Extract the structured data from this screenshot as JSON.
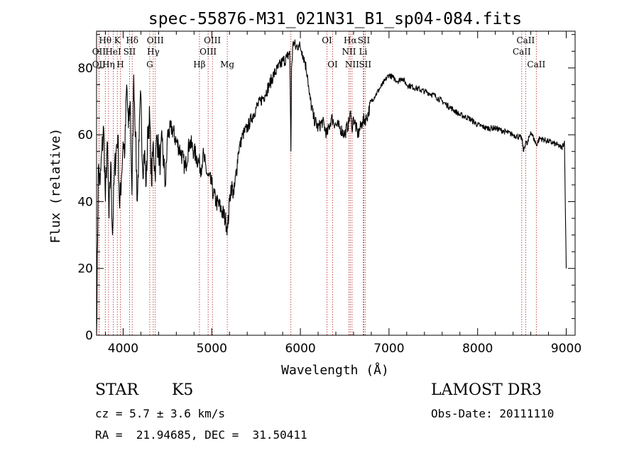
{
  "chart_data": {
    "type": "line",
    "title": "spec-55876-M31_021N31_B1_sp04-084.fits",
    "xlabel": "Wavelength (Å)",
    "ylabel": "Flux (relative)",
    "xlim": [
      3700,
      9100
    ],
    "ylim": [
      0,
      91
    ],
    "x_ticks": [
      4000,
      5000,
      6000,
      7000,
      8000,
      9000
    ],
    "y_ticks": [
      0,
      20,
      40,
      60,
      80
    ],
    "grid": false,
    "line_color": "#000000",
    "marker_color": "#b22222",
    "series": [
      {
        "x": [
          3700,
          3720,
          3740,
          3760,
          3780,
          3800,
          3820,
          3840,
          3860,
          3880,
          3900,
          3920,
          3940,
          3960,
          3980,
          4000,
          4020,
          4040,
          4060,
          4080,
          4100,
          4120,
          4140,
          4160,
          4180,
          4200,
          4220,
          4240,
          4260,
          4280,
          4300,
          4320,
          4340,
          4360,
          4380,
          4400,
          4420,
          4440,
          4460,
          4480,
          4500,
          4550,
          4600,
          4650,
          4700,
          4750,
          4800,
          4850,
          4880,
          4900,
          4950,
          5000,
          5020,
          5050,
          5100,
          5150,
          5180,
          5200,
          5220,
          5250,
          5300,
          5350,
          5400,
          5450,
          5500,
          5550,
          5600,
          5650,
          5700,
          5750,
          5800,
          5850,
          5880,
          5893,
          5900,
          5920,
          5950,
          5980,
          6000,
          6020,
          6050,
          6080,
          6100,
          6150,
          6200,
          6250,
          6300,
          6350,
          6400,
          6450,
          6500,
          6550,
          6563,
          6580,
          6600,
          6650,
          6700,
          6750,
          6800,
          6850,
          6900,
          6950,
          7000,
          7050,
          7100,
          7150,
          7200,
          7300,
          7400,
          7500,
          7600,
          7700,
          7800,
          7900,
          8000,
          8100,
          8200,
          8300,
          8400,
          8498,
          8520,
          8542,
          8560,
          8600,
          8662,
          8700,
          8800,
          8900,
          8950,
          8980,
          9000
        ],
        "values": [
          0,
          50,
          45,
          55,
          62,
          40,
          58,
          35,
          52,
          30,
          48,
          55,
          60,
          38,
          47,
          58,
          55,
          75,
          62,
          70,
          42,
          78,
          60,
          40,
          58,
          72,
          50,
          55,
          45,
          62,
          65,
          45,
          58,
          48,
          60,
          55,
          52,
          58,
          50,
          45,
          60,
          62,
          58,
          55,
          50,
          58,
          55,
          52,
          50,
          54,
          48,
          45,
          42,
          40,
          38,
          35,
          32,
          40,
          45,
          42,
          55,
          60,
          62,
          65,
          68,
          70,
          72,
          75,
          78,
          80,
          82,
          83,
          85,
          55,
          80,
          88,
          86,
          87,
          86,
          85,
          82,
          78,
          72,
          65,
          62,
          64,
          60,
          65,
          63,
          62,
          60,
          64,
          67,
          62,
          65,
          60,
          64,
          65,
          70,
          72,
          74,
          76,
          78,
          77,
          76,
          77,
          75,
          74,
          73,
          72,
          70,
          68,
          66,
          65,
          63,
          62,
          62,
          61,
          60,
          59,
          55,
          58,
          57,
          61,
          57,
          59,
          58,
          57,
          56,
          58,
          20
        ]
      }
    ],
    "line_markers": [
      {
        "wavelength": 3727,
        "label": "OII",
        "row": 2
      },
      {
        "wavelength": 3727,
        "label": "OII",
        "row": 3
      },
      {
        "wavelength": 3798,
        "label": "Hθ",
        "row": 1
      },
      {
        "wavelength": 3835,
        "label": "Hη",
        "row": 3
      },
      {
        "wavelength": 3889,
        "label": "HeI",
        "row": 2
      },
      {
        "wavelength": 3934,
        "label": "K",
        "row": 1
      },
      {
        "wavelength": 3968,
        "label": "H",
        "row": 3
      },
      {
        "wavelength": 4072,
        "label": "SII",
        "row": 2
      },
      {
        "wavelength": 4102,
        "label": "Hδ",
        "row": 1
      },
      {
        "wavelength": 4300,
        "label": "G",
        "row": 3
      },
      {
        "wavelength": 4340,
        "label": "Hγ",
        "row": 2
      },
      {
        "wavelength": 4363,
        "label": "OIII",
        "row": 1
      },
      {
        "wavelength": 4861,
        "label": "Hβ",
        "row": 3
      },
      {
        "wavelength": 4959,
        "label": "OIII",
        "row": 2
      },
      {
        "wavelength": 5007,
        "label": "OIII",
        "row": 1
      },
      {
        "wavelength": 5175,
        "label": "Mg",
        "row": 3
      },
      {
        "wavelength": 5893,
        "label": "",
        "row": 0
      },
      {
        "wavelength": 6300,
        "label": "OI",
        "row": 1
      },
      {
        "wavelength": 6364,
        "label": "OI",
        "row": 3
      },
      {
        "wavelength": 6548,
        "label": "NII",
        "row": 2
      },
      {
        "wavelength": 6563,
        "label": "Hα",
        "row": 1
      },
      {
        "wavelength": 6583,
        "label": "NII",
        "row": 3
      },
      {
        "wavelength": 6708,
        "label": "Li",
        "row": 2
      },
      {
        "wavelength": 6716,
        "label": "SII",
        "row": 1
      },
      {
        "wavelength": 6731,
        "label": "SII",
        "row": 3
      },
      {
        "wavelength": 8498,
        "label": "CaII",
        "row": 2
      },
      {
        "wavelength": 8542,
        "label": "CaII",
        "row": 1
      },
      {
        "wavelength": 8662,
        "label": "CaII",
        "row": 3
      }
    ]
  },
  "info": {
    "object_class": "STAR",
    "subclass": "K5",
    "survey": "LAMOST DR3",
    "redshift_text": "cz = 5.7 ± 3.6 km/s",
    "obs_date": "Obs-Date: 20111110",
    "coords": "RA =  21.94685, DEC =  31.50411"
  }
}
